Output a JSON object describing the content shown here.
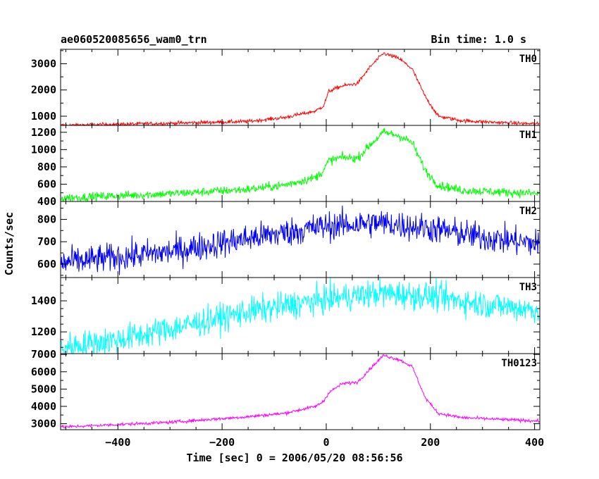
{
  "chart_data": {
    "type": "line",
    "title": "ae060520085656_wam0_trn",
    "bin_time_label": "Bin time: 1.0 s",
    "xlabel": "Time [sec] 0 = 2006/05/20 08:56:56",
    "ylabel": "Counts/sec",
    "xlim": [
      -510,
      410
    ],
    "x_major_ticks": [
      -400,
      -200,
      0,
      200,
      400
    ],
    "x_tick_labels": [
      "−400",
      "−200",
      "0",
      "200",
      "400"
    ],
    "x_minor_step": 50,
    "bin_seconds": 1,
    "panels": [
      {
        "name": "TH0",
        "color": "#ff0000",
        "ylim": [
          650,
          3550
        ],
        "y_ticks": [
          1000,
          2000,
          3000
        ],
        "y_tick_labels": [
          "1000",
          "2000",
          "3000"
        ],
        "y_minor_step": 500,
        "noise": 35,
        "profile": [
          [
            -510,
            650
          ],
          [
            -300,
            730
          ],
          [
            -150,
            800
          ],
          [
            -80,
            950
          ],
          [
            -20,
            1200
          ],
          [
            -5,
            1400
          ],
          [
            5,
            1950
          ],
          [
            30,
            2150
          ],
          [
            60,
            2250
          ],
          [
            85,
            2900
          ],
          [
            110,
            3400
          ],
          [
            140,
            3200
          ],
          [
            165,
            2800
          ],
          [
            190,
            1750
          ],
          [
            215,
            1000
          ],
          [
            260,
            830
          ],
          [
            330,
            760
          ],
          [
            410,
            700
          ]
        ]
      },
      {
        "name": "TH1",
        "color": "#00ff00",
        "ylim": [
          400,
          1280
        ],
        "y_ticks": [
          400,
          600,
          800,
          1000,
          1200
        ],
        "y_tick_labels": [
          "400",
          "600",
          "800",
          "1000",
          "1200"
        ],
        "y_minor_step": 100,
        "noise": 25,
        "profile": [
          [
            -510,
            440
          ],
          [
            -300,
            490
          ],
          [
            -150,
            540
          ],
          [
            -80,
            590
          ],
          [
            -20,
            680
          ],
          [
            -5,
            760
          ],
          [
            5,
            870
          ],
          [
            30,
            910
          ],
          [
            60,
            900
          ],
          [
            85,
            1060
          ],
          [
            110,
            1200
          ],
          [
            140,
            1160
          ],
          [
            165,
            1080
          ],
          [
            190,
            760
          ],
          [
            215,
            590
          ],
          [
            260,
            530
          ],
          [
            330,
            510
          ],
          [
            410,
            490
          ]
        ]
      },
      {
        "name": "TH2",
        "color": "#0000ff",
        "ylim": [
          540,
          880
        ],
        "y_ticks": [
          600,
          700,
          800
        ],
        "y_tick_labels": [
          "600",
          "700",
          "800"
        ],
        "y_minor_step": 50,
        "noise": 32,
        "profile": [
          [
            -510,
            605
          ],
          [
            -300,
            655
          ],
          [
            -150,
            715
          ],
          [
            0,
            770
          ],
          [
            100,
            785
          ],
          [
            200,
            760
          ],
          [
            300,
            720
          ],
          [
            410,
            690
          ]
        ]
      },
      {
        "name": "TH3",
        "color": "#00ffff",
        "ylim": [
          1060,
          1550
        ],
        "y_ticks": [
          1200,
          1400
        ],
        "y_tick_labels": [
          "1200",
          "1400"
        ],
        "y_minor_step": 50,
        "noise": 45,
        "profile": [
          [
            -510,
            1100
          ],
          [
            -400,
            1150
          ],
          [
            -300,
            1220
          ],
          [
            -150,
            1330
          ],
          [
            0,
            1410
          ],
          [
            100,
            1450
          ],
          [
            200,
            1430
          ],
          [
            300,
            1380
          ],
          [
            410,
            1340
          ]
        ]
      },
      {
        "name": "TH0123",
        "color": "#ff00ff",
        "ylim": [
          2650,
          7050
        ],
        "y_ticks": [
          3000,
          4000,
          5000,
          6000,
          7000
        ],
        "y_tick_labels": [
          "3000",
          "4000",
          "5000",
          "6000",
          "7000"
        ],
        "y_minor_step": 500,
        "noise": 45,
        "profile": [
          [
            -510,
            2800
          ],
          [
            -300,
            3080
          ],
          [
            -150,
            3400
          ],
          [
            -80,
            3600
          ],
          [
            -20,
            4000
          ],
          [
            -5,
            4300
          ],
          [
            5,
            4800
          ],
          [
            30,
            5300
          ],
          [
            60,
            5400
          ],
          [
            85,
            6200
          ],
          [
            110,
            6950
          ],
          [
            140,
            6700
          ],
          [
            165,
            6300
          ],
          [
            190,
            4500
          ],
          [
            215,
            3600
          ],
          [
            260,
            3350
          ],
          [
            330,
            3250
          ],
          [
            410,
            3150
          ]
        ]
      }
    ]
  }
}
